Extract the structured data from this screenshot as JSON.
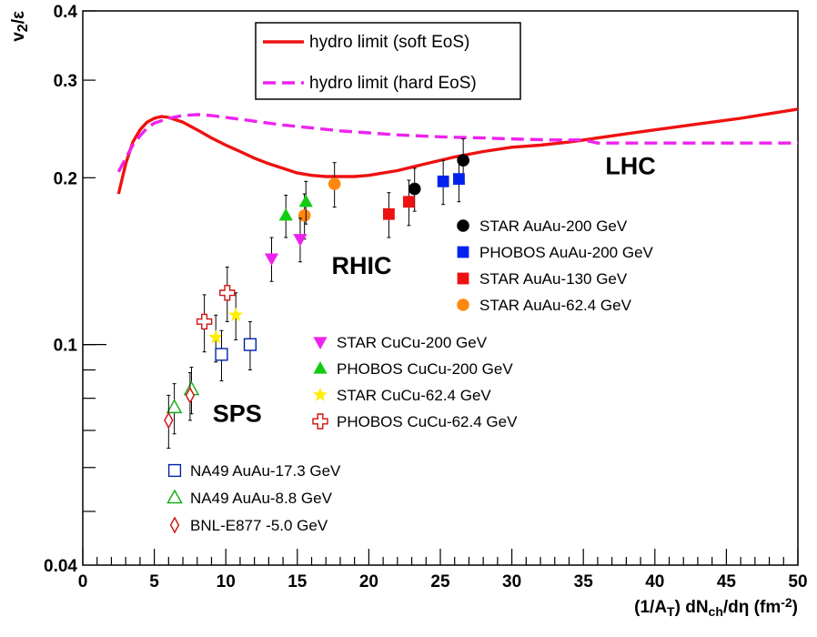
{
  "chart_data": {
    "type": "scatter",
    "title": "",
    "xlabel": "(1/A_T) dN_ch/dη (fm^-2)",
    "ylabel": "v_2/ε",
    "xlim": [
      0,
      50
    ],
    "ylim": [
      0.04,
      0.4
    ],
    "y_scale": "log",
    "grid": false,
    "x_ticks": [
      "0",
      "5",
      "10",
      "15",
      "20",
      "25",
      "30",
      "35",
      "40",
      "45",
      "50"
    ],
    "y_ticks": [
      {
        "value": 0.04,
        "label": "0.04"
      },
      {
        "value": 0.1,
        "label": "0.1"
      },
      {
        "value": 0.2,
        "label": "0.2"
      },
      {
        "value": 0.3,
        "label": "0.3"
      },
      {
        "value": 0.4,
        "label": "0.4"
      }
    ],
    "lines": [
      {
        "name": "hydro limit (soft EoS)",
        "style": "solid",
        "color": "#ee1111",
        "points": [
          [
            2.5,
            0.187
          ],
          [
            3.0,
            0.212
          ],
          [
            3.5,
            0.232
          ],
          [
            4.0,
            0.244
          ],
          [
            4.5,
            0.252
          ],
          [
            5.0,
            0.256
          ],
          [
            5.5,
            0.258
          ],
          [
            6.0,
            0.257
          ],
          [
            7.0,
            0.252
          ],
          [
            8.0,
            0.244
          ],
          [
            9.0,
            0.236
          ],
          [
            10.0,
            0.229
          ],
          [
            11.0,
            0.223
          ],
          [
            12.0,
            0.217
          ],
          [
            13.0,
            0.212
          ],
          [
            14.0,
            0.208
          ],
          [
            15.0,
            0.204
          ],
          [
            16.0,
            0.202
          ],
          [
            17.0,
            0.201
          ],
          [
            18.0,
            0.201
          ],
          [
            19.0,
            0.201
          ],
          [
            20.0,
            0.202
          ],
          [
            21.0,
            0.204
          ],
          [
            22.0,
            0.206
          ],
          [
            23.0,
            0.209
          ],
          [
            24.0,
            0.212
          ],
          [
            26.0,
            0.218
          ],
          [
            28.0,
            0.223
          ],
          [
            30.0,
            0.227
          ],
          [
            32.0,
            0.229
          ],
          [
            34.0,
            0.232
          ],
          [
            36.0,
            0.236
          ],
          [
            38.0,
            0.24
          ],
          [
            40.0,
            0.244
          ],
          [
            42.0,
            0.248
          ],
          [
            44.0,
            0.252
          ],
          [
            46.0,
            0.256
          ],
          [
            48.0,
            0.261
          ],
          [
            50.0,
            0.266
          ]
        ]
      },
      {
        "name": "hydro limit (hard EoS)",
        "style": "dashed",
        "color": "#ee22ee",
        "points": [
          [
            2.5,
            0.205
          ],
          [
            3.0,
            0.217
          ],
          [
            3.5,
            0.229
          ],
          [
            4.0,
            0.238
          ],
          [
            4.5,
            0.246
          ],
          [
            5.0,
            0.251
          ],
          [
            6.0,
            0.256
          ],
          [
            7.0,
            0.259
          ],
          [
            8.0,
            0.26
          ],
          [
            9.0,
            0.259
          ],
          [
            10.0,
            0.257
          ],
          [
            11.0,
            0.255
          ],
          [
            12.0,
            0.253
          ],
          [
            14.0,
            0.249
          ],
          [
            16.0,
            0.246
          ],
          [
            18.0,
            0.243
          ],
          [
            20.0,
            0.241
          ],
          [
            22.0,
            0.239
          ],
          [
            25.0,
            0.237
          ],
          [
            28.0,
            0.236
          ],
          [
            30.0,
            0.235
          ],
          [
            33.0,
            0.234
          ],
          [
            35.0,
            0.234
          ],
          [
            36.0,
            0.231
          ],
          [
            38.0,
            0.231
          ],
          [
            40.0,
            0.231
          ],
          [
            42.0,
            0.231
          ],
          [
            45.0,
            0.231
          ],
          [
            48.0,
            0.231
          ],
          [
            50.0,
            0.231
          ]
        ]
      }
    ],
    "series": [
      {
        "name": "STAR AuAu-200 GeV",
        "marker": "circle",
        "filled": true,
        "color": "#000000",
        "points": [
          [
            23.2,
            0.191,
            0.017
          ],
          [
            26.6,
            0.215,
            0.02
          ]
        ]
      },
      {
        "name": "PHOBOS AuAu-200 GeV",
        "marker": "square",
        "filled": true,
        "color": "#0022ee",
        "points": [
          [
            25.2,
            0.197,
            0.018
          ],
          [
            26.3,
            0.199,
            0.018
          ]
        ]
      },
      {
        "name": "STAR AuAu-130 GeV",
        "marker": "square",
        "filled": true,
        "color": "#ee1111",
        "points": [
          [
            21.4,
            0.172,
            0.016
          ],
          [
            22.8,
            0.181,
            0.017
          ]
        ]
      },
      {
        "name": "STAR AuAu-62.4 GeV",
        "marker": "circle",
        "filled": true,
        "color": "#ff8811",
        "points": [
          [
            15.5,
            0.171,
            0.016
          ],
          [
            17.6,
            0.195,
            0.018
          ]
        ]
      },
      {
        "name": "STAR CuCu-200 GeV",
        "marker": "triangle-down",
        "filled": true,
        "color": "#ee22ee",
        "points": [
          [
            13.2,
            0.143,
            0.013
          ],
          [
            15.2,
            0.155,
            0.014
          ]
        ]
      },
      {
        "name": "PHOBOS CuCu-200 GeV",
        "marker": "triangle-up",
        "filled": true,
        "color": "#11cc11",
        "points": [
          [
            14.2,
            0.171,
            0.015
          ],
          [
            15.6,
            0.181,
            0.016
          ]
        ]
      },
      {
        "name": "STAR CuCu-62.4 GeV",
        "marker": "star",
        "filled": true,
        "color": "#ffee00",
        "points": [
          [
            9.3,
            0.103,
            0.01
          ],
          [
            10.7,
            0.113,
            0.011
          ]
        ]
      },
      {
        "name": "PHOBOS CuCu-62.4 GeV",
        "marker": "cross",
        "filled": false,
        "color": "#cc1111",
        "points": [
          [
            8.5,
            0.11,
            0.013
          ],
          [
            10.1,
            0.124,
            0.014
          ]
        ]
      },
      {
        "name": "NA49 AuAu-17.3 GeV",
        "marker": "square",
        "filled": false,
        "color": "#0022aa",
        "points": [
          [
            9.7,
            0.096,
            0.01
          ],
          [
            11.7,
            0.1,
            0.01
          ]
        ]
      },
      {
        "name": "NA49 AuAu-8.8 GeV",
        "marker": "triangle-up",
        "filled": false,
        "color": "#11aa11",
        "points": [
          [
            6.4,
            0.077,
            0.008
          ],
          [
            7.6,
            0.083,
            0.008
          ]
        ]
      },
      {
        "name": "BNL-E877 -5.0 GeV",
        "marker": "diamond",
        "filled": false,
        "color": "#cc1111",
        "points": [
          [
            6.0,
            0.073,
            0.008
          ],
          [
            7.5,
            0.081,
            0.008
          ]
        ]
      }
    ],
    "annotations": [
      {
        "text": "LHC",
        "x": 38.3,
        "y": 0.203
      },
      {
        "text": "RHIC",
        "x": 19.5,
        "y": 0.134
      },
      {
        "text": "SPS",
        "x": 10.8,
        "y": 0.0725
      }
    ],
    "legend_top": [
      "hydro limit (soft EoS)",
      "hydro limit (hard EoS)"
    ],
    "legend_top_placement": "top-center",
    "legend_groups": [
      {
        "placement": "right-middle",
        "items": [
          "STAR AuAu-200 GeV",
          "PHOBOS AuAu-200 GeV",
          "STAR AuAu-130 GeV",
          "STAR AuAu-62.4 GeV"
        ]
      },
      {
        "placement": "center",
        "items": [
          "STAR CuCu-200 GeV",
          "PHOBOS CuCu-200 GeV",
          "STAR CuCu-62.4 GeV",
          "PHOBOS CuCu-62.4 GeV"
        ]
      },
      {
        "placement": "bottom-left",
        "items": [
          "NA49 AuAu-17.3 GeV",
          "NA49 AuAu-8.8 GeV",
          "BNL-E877 -5.0 GeV"
        ]
      }
    ]
  }
}
